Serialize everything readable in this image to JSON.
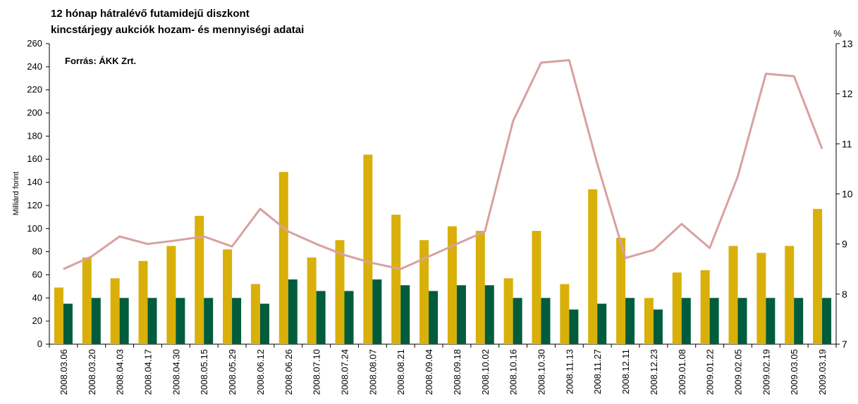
{
  "chart_data": {
    "type": "bar-line",
    "title": [
      "12 hónap hátralévő futamidejű diszkont",
      "kincstárjegy aukciók hozam- és mennyiségi adatai"
    ],
    "annotation": "Forrás:  ÁKK Zrt.",
    "ylabel": "Milliárd forint",
    "y2label": "%",
    "categories": [
      "2008.03.06",
      "2008.03.20",
      "2008.04.03",
      "2008.04.17",
      "2008.04.30",
      "2008.05.15",
      "2008.05.29",
      "2008.06.12",
      "2008.06.26",
      "2008.07.10",
      "2008.07.24",
      "2008.08.07",
      "2008.08.21",
      "2008.09.04",
      "2008.09.18",
      "2008.10.02",
      "2008.10.16",
      "2008.10.30",
      "2008.11.13",
      "2008.11.27",
      "2008.12.11",
      "2008.12.23",
      "2009.01.08",
      "2009.01.22",
      "2009.02.05",
      "2009.02.19",
      "2009.03.05",
      "2009.03.19"
    ],
    "series": [
      {
        "type": "bar",
        "color": "#d9b00a",
        "values": [
          49,
          75,
          57,
          72,
          85,
          111,
          82,
          52,
          149,
          75,
          90,
          164,
          112,
          90,
          102,
          98,
          57,
          98,
          52,
          134,
          92,
          40,
          62,
          64,
          85,
          79,
          85,
          117
        ]
      },
      {
        "type": "bar",
        "color": "#005c3c",
        "values": [
          35,
          40,
          40,
          40,
          40,
          40,
          40,
          35,
          56,
          46,
          46,
          56,
          51,
          46,
          51,
          51,
          40,
          40,
          30,
          35,
          40,
          30,
          40,
          40,
          40,
          40,
          40,
          40
        ]
      },
      {
        "type": "line",
        "axis": "y2",
        "color": "#d9a0a0",
        "values": [
          8.5,
          8.75,
          9.15,
          9.0,
          9.07,
          9.15,
          8.95,
          9.7,
          9.25,
          9.0,
          8.78,
          8.62,
          8.5,
          8.75,
          9.0,
          9.25,
          11.45,
          12.62,
          12.67,
          10.6,
          8.72,
          8.88,
          9.4,
          8.92,
          10.35,
          12.4,
          12.35,
          10.9
        ]
      }
    ],
    "ylim": [
      0,
      260
    ],
    "yticks": [
      0,
      20,
      40,
      60,
      80,
      100,
      120,
      140,
      160,
      180,
      200,
      220,
      240,
      260
    ],
    "y2lim": [
      7,
      13
    ],
    "y2ticks": [
      7,
      8,
      9,
      10,
      11,
      12,
      13
    ]
  }
}
